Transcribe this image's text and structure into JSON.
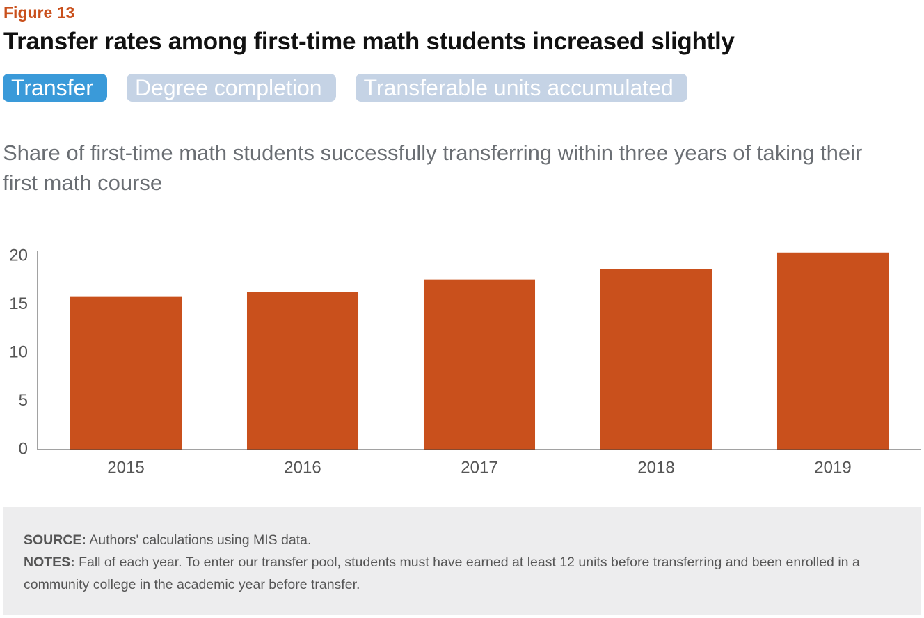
{
  "figure_label": "Figure 13",
  "title": "Transfer rates among first-time math students increased slightly",
  "tabs": [
    "Transfer",
    "Degree completion",
    "Transferable units accumulated"
  ],
  "chart_data": {
    "type": "bar",
    "subtitle": "Share of first-time math students successfully transferring within three years of taking their first math course",
    "categories": [
      "2015",
      "2016",
      "2017",
      "2018",
      "2019"
    ],
    "values": [
      15.8,
      16.3,
      17.6,
      18.7,
      20.4
    ],
    "color": "#c9501c",
    "ylim": [
      0,
      20.6
    ],
    "yticks": [
      0,
      5,
      10,
      15,
      20
    ],
    "grid": false
  },
  "footer": {
    "source_label": "SOURCE:",
    "source": "Authors' calculations using MIS data.",
    "notes_label": "NOTES:",
    "notes": "Fall of each year. To enter our transfer pool, students must have earned at least 12 units before transferring and been enrolled in a community college in the academic year before transfer."
  }
}
